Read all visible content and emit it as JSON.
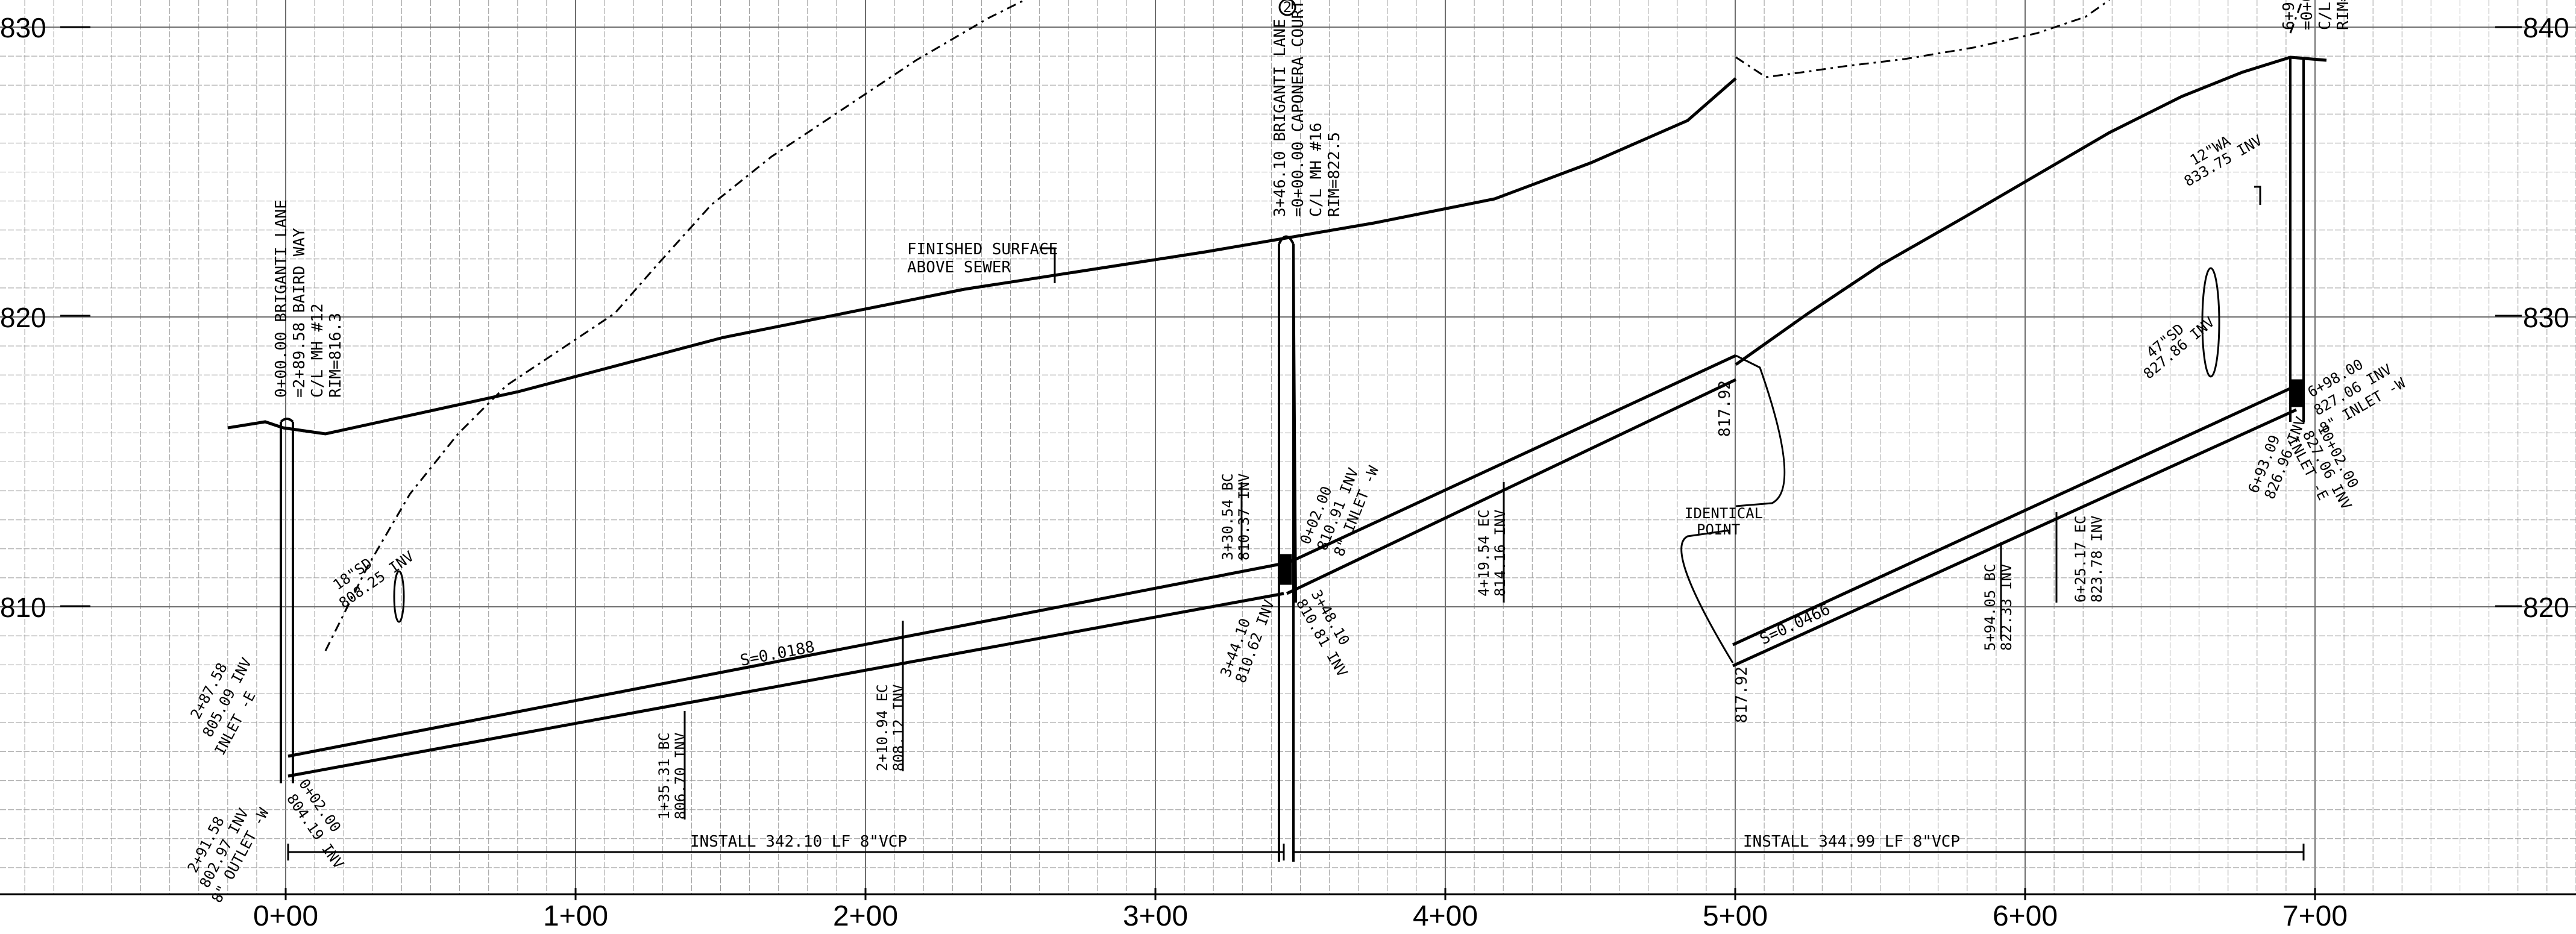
{
  "colors": {
    "ink": "#000000",
    "grid": "#9a9a9a",
    "grid_major": "#6e6e6e",
    "paper": "#ffffff"
  },
  "stations": [
    "0+00",
    "1+00",
    "2+00",
    "3+00",
    "4+00",
    "5+00",
    "6+00",
    "7+00"
  ],
  "elevations": {
    "left": [
      "830",
      "820",
      "810"
    ],
    "right": [
      "840",
      "830",
      "820"
    ]
  },
  "annotations": {
    "mh12": [
      "0+00.00 BRIGANTI LANE",
      "=2+89.58 BAIRD WAY",
      "C/L MH #12",
      "RIM=816.3"
    ],
    "mh16": [
      "3+46.10 BRIGANTI LANE",
      "=0+00.00 CAPONERA COURT",
      "C/L MH #16",
      "RIM=822.5"
    ],
    "mh_top_right": [
      "6+9",
      "=0+0",
      "C/L",
      "RIM="
    ],
    "circled_mark": "2",
    "finished_surface": [
      "FINISHED SURFACE",
      "ABOVE SEWER"
    ],
    "inv_2_87": [
      "2+87.58",
      "805.09 INV",
      "INLET -E"
    ],
    "inv_2_91": [
      "2+91.58",
      "802.97 INV",
      "8\" OUTLET -W"
    ],
    "inv_0_02": [
      "0+02.00",
      "804.19 INV"
    ],
    "sd_18": [
      "18\"SD",
      "808.25 INV"
    ],
    "slope1": "S=0.0188",
    "bc_1_35": [
      "1+35.31 BC",
      "806.70 INV"
    ],
    "ec_2_10": [
      "2+10.94 EC",
      "808.12 INV"
    ],
    "bc_3_30": [
      "3+30.54 BC",
      "810.37 INV"
    ],
    "inv_3_44": [
      "3+44.10",
      "810.62 INV"
    ],
    "inv_3_48": [
      "3+48.10",
      "810.81 INV"
    ],
    "inv_0_02b": [
      "0+02.00",
      "810.91 INV",
      "8\" INLET -W"
    ],
    "ec_4_19": [
      "4+19.54 EC",
      "814.16 INV"
    ],
    "point_a": "817.92",
    "point_b": "817.92",
    "identical_point": [
      "IDENTICAL",
      "POINT"
    ],
    "slope2": "S=0.0466",
    "bc_5_94": [
      "5+94.05 BC",
      "822.33 INV"
    ],
    "ec_6_25": [
      "6+25.17 EC",
      "823.78 INV"
    ],
    "wa_12": [
      "12\"WA",
      "833.75 INV"
    ],
    "sd_47": [
      "47\"SD",
      "827.86 INV"
    ],
    "inv_6_93": [
      "6+93.09",
      "826.96 INV"
    ],
    "inv_6_98": [
      "6+98.00",
      "827.06 INV",
      "8\" INLET -W"
    ],
    "inv_10_02": [
      "10+02.00",
      "827.06 INV",
      "INLET -E"
    ],
    "install1": "INSTALL 342.10 LF 8\"VCP",
    "install2": "INSTALL 344.99 LF 8\"VCP"
  }
}
